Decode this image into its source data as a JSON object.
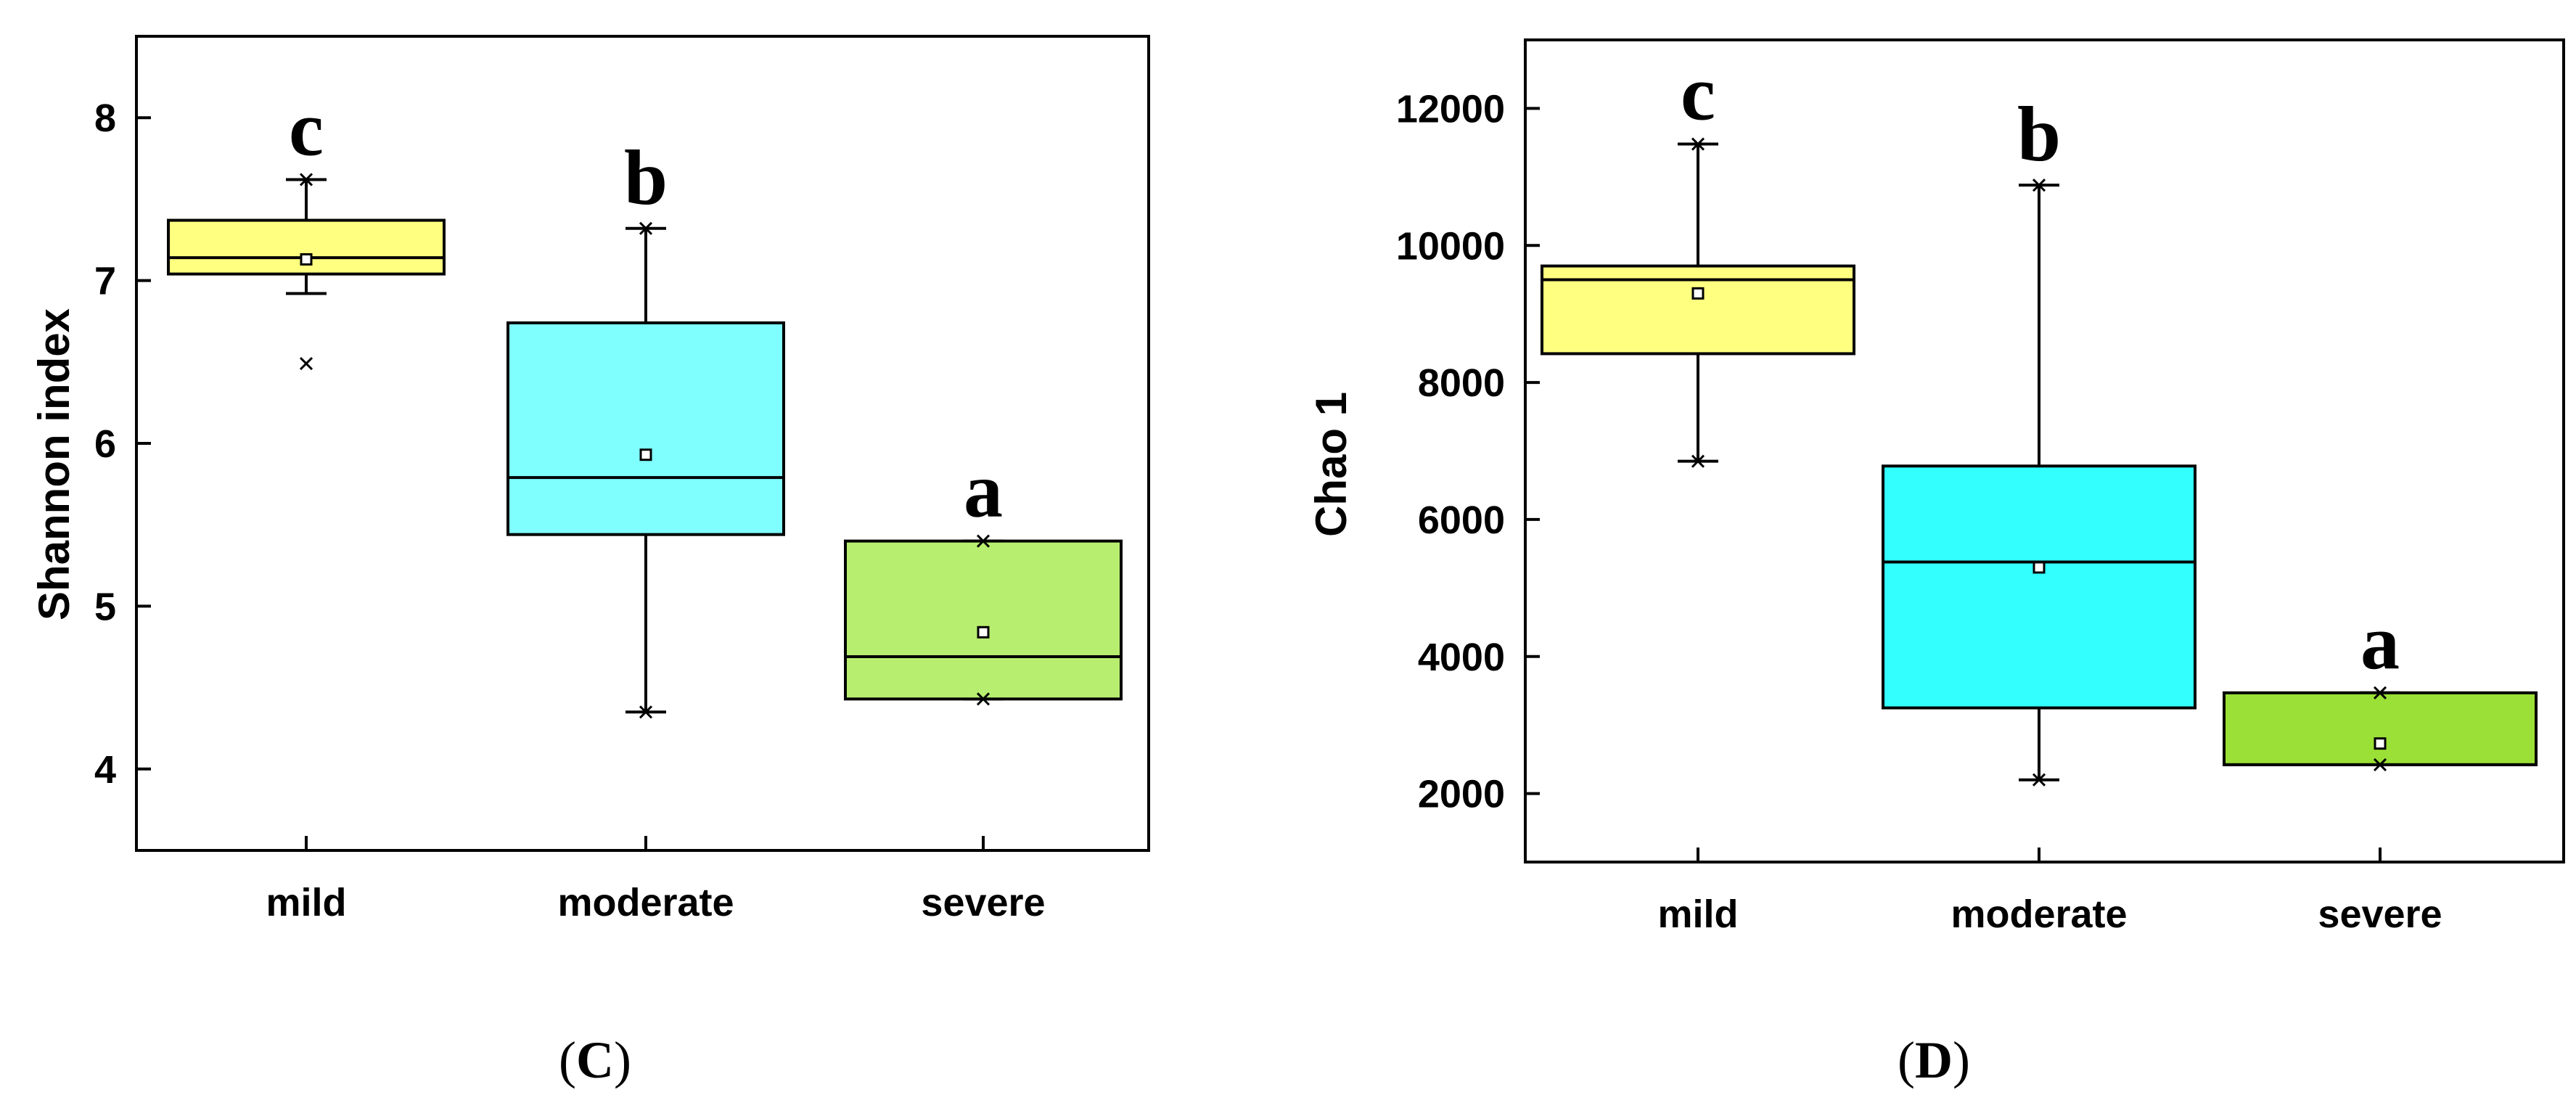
{
  "chart_data": [
    {
      "type": "box",
      "panel_label": "C",
      "ylabel": "Shannon index",
      "xlabel": "",
      "categories": [
        "mild",
        "moderate",
        "severe"
      ],
      "ylim": [
        3.5,
        8.5
      ],
      "yticks": [
        4,
        5,
        6,
        7,
        8
      ],
      "ytick_labels": [
        "4",
        "5",
        "6",
        "7",
        "8"
      ],
      "grid": false,
      "legend": "none",
      "boxes": [
        {
          "category": "mild",
          "whisker_low": 6.92,
          "q1": 7.04,
          "median": 7.14,
          "q3": 7.37,
          "whisker_high": 7.62,
          "mean": 7.13,
          "minmax_marks": [
            7.62
          ],
          "outliers": [
            6.49
          ],
          "letter": "c",
          "color": "#FFFF80"
        },
        {
          "category": "moderate",
          "whisker_low": 4.35,
          "q1": 5.44,
          "median": 5.79,
          "q3": 6.74,
          "whisker_high": 7.32,
          "mean": 5.93,
          "minmax_marks": [
            4.35,
            7.32
          ],
          "outliers": [],
          "letter": "b",
          "color": "#80FFFF"
        },
        {
          "category": "severe",
          "whisker_low": 4.43,
          "q1": 4.43,
          "median": 4.69,
          "q3": 5.4,
          "whisker_high": 5.4,
          "mean": 4.84,
          "minmax_marks": [
            4.43,
            5.4
          ],
          "outliers": [],
          "letter": "a",
          "color": "#B8EE70"
        }
      ]
    },
    {
      "type": "box",
      "panel_label": "D",
      "ylabel": "Chao 1",
      "xlabel": "",
      "categories": [
        "mild",
        "moderate",
        "severe"
      ],
      "ylim": [
        1000,
        13000
      ],
      "yticks": [
        2000,
        4000,
        6000,
        8000,
        10000,
        12000
      ],
      "ytick_labels": [
        "2000",
        "4000",
        "6000",
        "8000",
        "10000",
        "12000"
      ],
      "grid": false,
      "legend": "none",
      "boxes": [
        {
          "category": "mild",
          "whisker_low": 6850,
          "q1": 8420,
          "median": 9500,
          "q3": 9700,
          "whisker_high": 11480,
          "mean": 9300,
          "minmax_marks": [
            6850,
            11480
          ],
          "outliers": [],
          "letter": "c",
          "color": "#FFFF80"
        },
        {
          "category": "moderate",
          "whisker_low": 2200,
          "q1": 3250,
          "median": 5380,
          "q3": 6780,
          "whisker_high": 10880,
          "mean": 5300,
          "minmax_marks": [
            2200,
            10880
          ],
          "outliers": [],
          "letter": "b",
          "color": "#33FFFF"
        },
        {
          "category": "severe",
          "whisker_low": 2420,
          "q1": 2420,
          "median": 2420,
          "q3": 3470,
          "whisker_high": 3470,
          "mean": 2730,
          "minmax_marks": [
            2420,
            3470
          ],
          "outliers": [],
          "letter": "a",
          "color": "#9BE036"
        }
      ]
    }
  ]
}
